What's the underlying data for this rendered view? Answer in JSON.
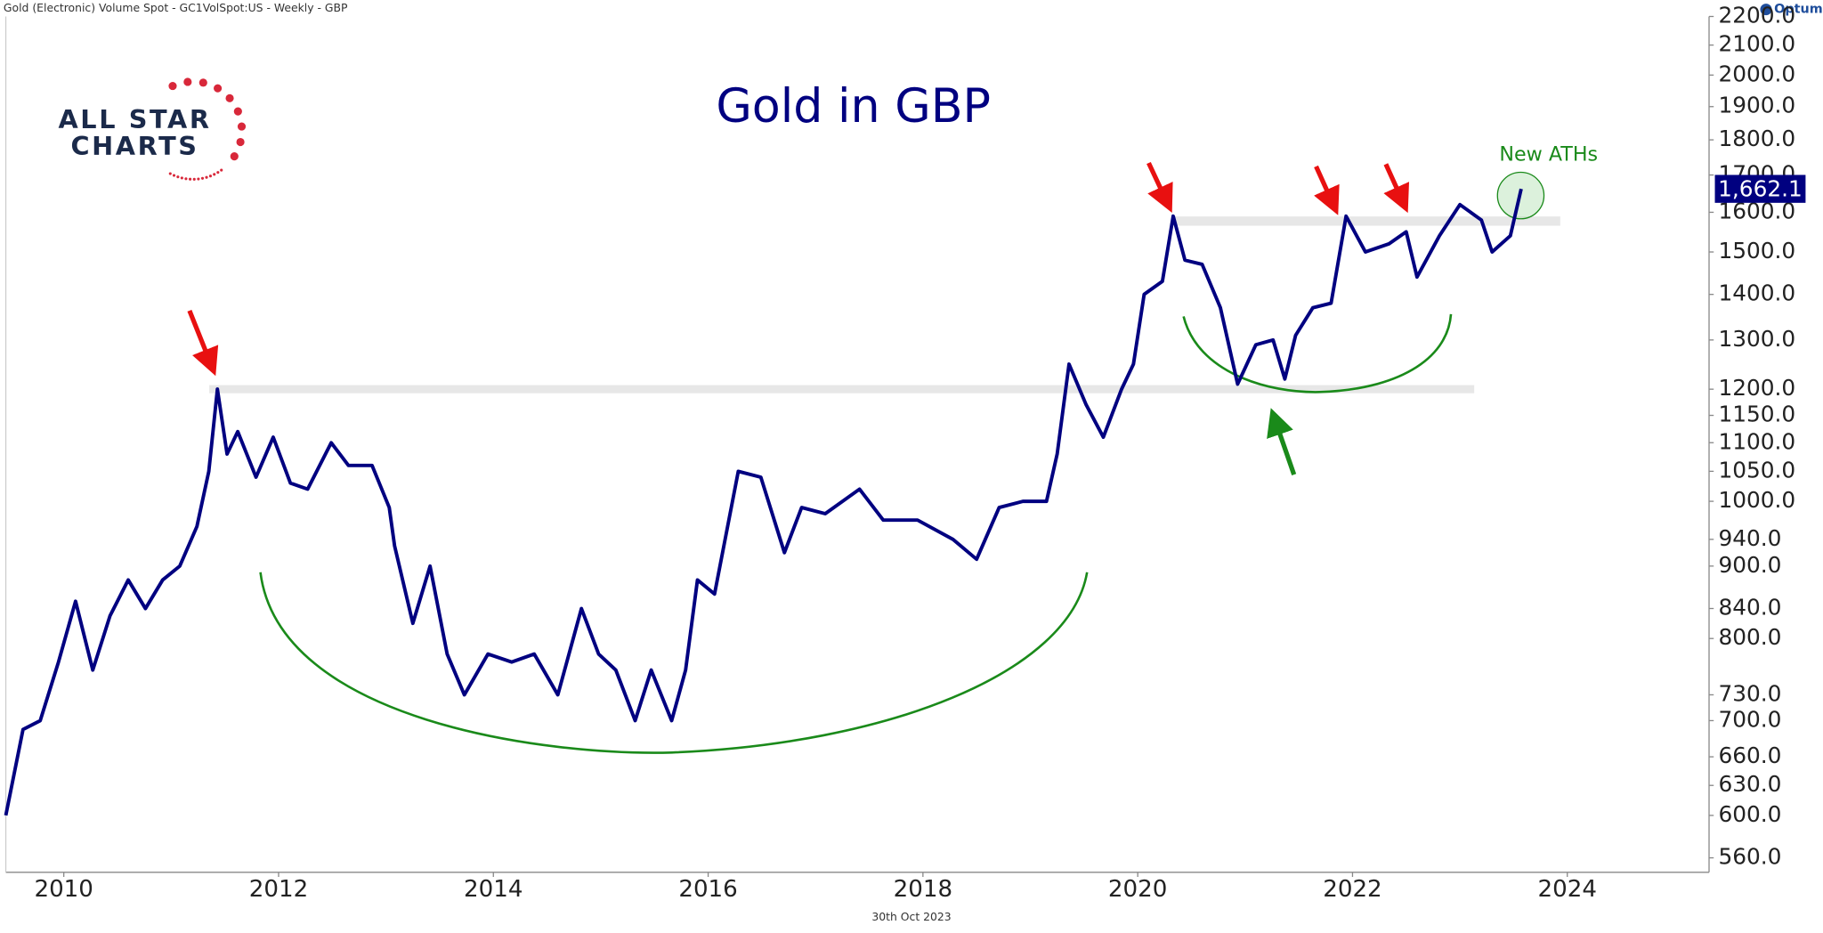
{
  "header": "Gold (Electronic) Volume Spot - GC1VolSpot:US - Weekly - GBP",
  "brand": "Optuma",
  "logo": {
    "line1": "ALL STAR",
    "line2": "CHARTS"
  },
  "footer": "30th Oct 2023",
  "chart_data": {
    "type": "line",
    "title": "Gold in GBP",
    "annotations": [
      "New ATHs"
    ],
    "log_scale": true,
    "color": "#000080",
    "x": [
      2009.46,
      2009.62,
      2009.78,
      2009.95,
      2010.11,
      2010.27,
      2010.43,
      2010.6,
      2010.76,
      2010.92,
      2011.08,
      2011.24,
      2011.35,
      2011.43,
      2011.52,
      2011.62,
      2011.79,
      2011.95,
      2012.11,
      2012.27,
      2012.49,
      2012.65,
      2012.87,
      2013.03,
      2013.08,
      2013.25,
      2013.41,
      2013.57,
      2013.73,
      2013.95,
      2014.17,
      2014.38,
      2014.6,
      2014.82,
      2014.98,
      2015.14,
      2015.32,
      2015.47,
      2015.66,
      2015.79,
      2015.9,
      2016.06,
      2016.28,
      2016.49,
      2016.71,
      2016.87,
      2017.09,
      2017.41,
      2017.63,
      2017.95,
      2018.28,
      2018.5,
      2018.71,
      2018.93,
      2019.15,
      2019.25,
      2019.36,
      2019.52,
      2019.68,
      2019.85,
      2019.96,
      2020.06,
      2020.23,
      2020.33,
      2020.44,
      2020.6,
      2020.77,
      2020.93,
      2021.1,
      2021.26,
      2021.37,
      2021.47,
      2021.63,
      2021.8,
      2021.94,
      2022.12,
      2022.34,
      2022.5,
      2022.6,
      2022.81,
      2023.0,
      2023.2,
      2023.3,
      2023.47,
      2023.57
    ],
    "values": [
      600,
      690,
      700,
      770,
      850,
      760,
      830,
      880,
      840,
      880,
      900,
      960,
      1050,
      1200,
      1080,
      1120,
      1040,
      1110,
      1030,
      1020,
      1100,
      1060,
      1060,
      990,
      930,
      820,
      900,
      780,
      730,
      780,
      770,
      780,
      730,
      840,
      780,
      760,
      700,
      760,
      700,
      760,
      880,
      860,
      1050,
      1040,
      920,
      990,
      980,
      1020,
      970,
      970,
      940,
      910,
      990,
      1000,
      1000,
      1080,
      1250,
      1170,
      1110,
      1200,
      1250,
      1400,
      1430,
      1590,
      1480,
      1470,
      1370,
      1210,
      1290,
      1300,
      1220,
      1310,
      1370,
      1380,
      1590,
      1500,
      1520,
      1550,
      1440,
      1540,
      1620,
      1580,
      1500,
      1540,
      1662.1
    ],
    "last_price": {
      "value": 1662.1,
      "label": "1,662.1"
    },
    "xlim": [
      2009.46,
      2025.32
    ],
    "xticks": [
      2010,
      2012,
      2014,
      2016,
      2018,
      2020,
      2022,
      2024
    ],
    "ylim": [
      547,
      2200
    ],
    "yticks": [
      {
        "value": 560,
        "label": "560.0"
      },
      {
        "value": 600,
        "label": "600.0"
      },
      {
        "value": 630,
        "label": "630.0"
      },
      {
        "value": 660,
        "label": "660.0"
      },
      {
        "value": 700,
        "label": "700.0"
      },
      {
        "value": 730,
        "label": "730.0"
      },
      {
        "value": 800,
        "label": "800.0"
      },
      {
        "value": 840,
        "label": "840.0"
      },
      {
        "value": 900,
        "label": "900.0"
      },
      {
        "value": 940,
        "label": "940.0"
      },
      {
        "value": 1000,
        "label": "1000.0"
      },
      {
        "value": 1050,
        "label": "1050.0"
      },
      {
        "value": 1100,
        "label": "1100.0"
      },
      {
        "value": 1150,
        "label": "1150.0"
      },
      {
        "value": 1200,
        "label": "1200.0"
      },
      {
        "value": 1300,
        "label": "1300.0"
      },
      {
        "value": 1400,
        "label": "1400.0"
      },
      {
        "value": 1500,
        "label": "1500.0"
      },
      {
        "value": 1600,
        "label": "1600.0"
      },
      {
        "value": 1700,
        "label": "1700.0"
      },
      {
        "value": 1800,
        "label": "1800.0"
      },
      {
        "value": 1900,
        "label": "1900.0"
      },
      {
        "value": 2000,
        "label": "2000.0"
      },
      {
        "value": 2100,
        "label": "2100.0"
      },
      {
        "value": 2200,
        "label": "2200.0"
      }
    ],
    "grid": false
  }
}
